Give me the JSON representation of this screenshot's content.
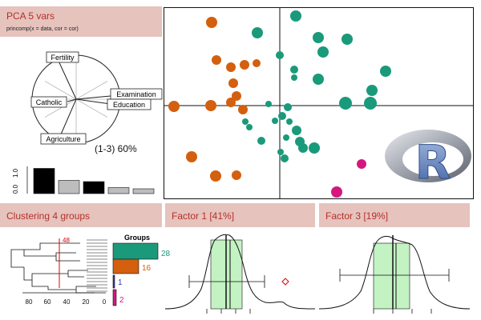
{
  "pca_panel": {
    "title": "PCA  5 vars",
    "call": "princomp(x = data, cor = cor)",
    "variance_label": "(1-3) 60%"
  },
  "loadings": [
    "Fertility",
    "Examination",
    "Catholic",
    "Education",
    "Agriculture"
  ],
  "eigen_bars": {
    "yticks": [
      "0.0",
      "1.0"
    ],
    "values": [
      1.05,
      0.55,
      0.5,
      0.25,
      0.2
    ],
    "colors": [
      "#000000",
      "#bdbdbd",
      "#000000",
      "#bdbdbd",
      "#bdbdbd"
    ]
  },
  "scatter": {
    "colors": {
      "orange": "#d35f0f",
      "teal": "#1a9a7a",
      "magenta": "#d4177f"
    },
    "logo": "R"
  },
  "clustering_panel": {
    "title": "Clustering  4 groups",
    "cut_label": "48",
    "axis_ticks": [
      "80",
      "60",
      "40",
      "20",
      "0"
    ],
    "groups_title": "Groups",
    "groups": [
      {
        "count": "28",
        "value": 28,
        "color": "#1a9a7a"
      },
      {
        "count": "16",
        "value": 16,
        "color": "#d35f0f"
      },
      {
        "count": "1",
        "value": 1,
        "color": "#3a3aa0"
      },
      {
        "count": "2",
        "value": 2,
        "color": "#d4177f"
      }
    ]
  },
  "factor1_panel": {
    "title": "Factor 1 [41%]"
  },
  "factor3_panel": {
    "title": "Factor 3 [19%]"
  }
}
